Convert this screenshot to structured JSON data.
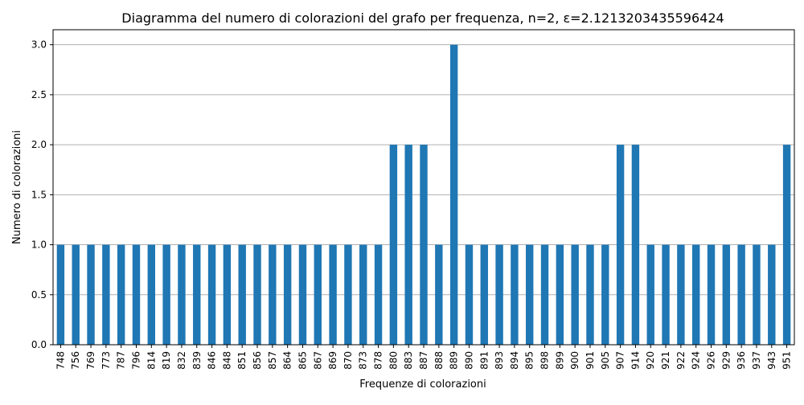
{
  "chart_data": {
    "type": "bar",
    "title": "Diagramma del numero di colorazioni del grafo per frequenza, n=2, ε=2.1213203435596424",
    "xlabel": "Frequenze di colorazioni",
    "ylabel": "Numero di colorazioni",
    "categories": [
      "748",
      "756",
      "769",
      "773",
      "787",
      "796",
      "814",
      "819",
      "832",
      "839",
      "846",
      "848",
      "851",
      "856",
      "857",
      "864",
      "865",
      "867",
      "869",
      "870",
      "873",
      "878",
      "880",
      "883",
      "887",
      "888",
      "889",
      "890",
      "891",
      "893",
      "894",
      "895",
      "898",
      "899",
      "900",
      "901",
      "905",
      "907",
      "914",
      "920",
      "921",
      "922",
      "924",
      "926",
      "929",
      "936",
      "937",
      "943",
      "951"
    ],
    "values": [
      1,
      1,
      1,
      1,
      1,
      1,
      1,
      1,
      1,
      1,
      1,
      1,
      1,
      1,
      1,
      1,
      1,
      1,
      1,
      1,
      1,
      1,
      2,
      2,
      2,
      1,
      3,
      1,
      1,
      1,
      1,
      1,
      1,
      1,
      1,
      1,
      1,
      2,
      2,
      1,
      1,
      1,
      1,
      1,
      1,
      1,
      1,
      1,
      2
    ],
    "ylim": [
      0,
      3.15
    ],
    "yticks": [
      "0.0",
      "0.5",
      "1.0",
      "1.5",
      "2.0",
      "2.5",
      "3.0"
    ],
    "grid": "y-major",
    "bar_color": "#1f77b4",
    "grid_color": "#b0b0b0",
    "legend": "none"
  }
}
